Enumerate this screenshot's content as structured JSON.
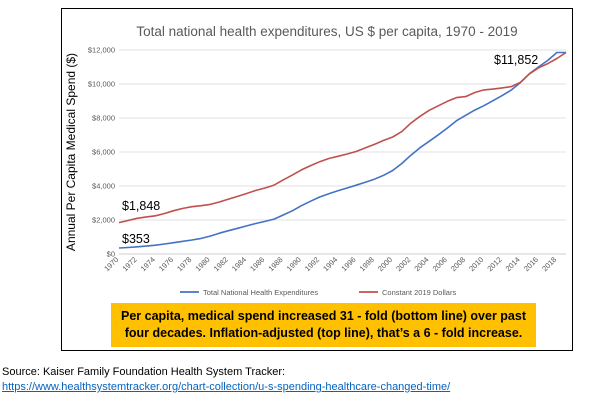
{
  "chart_data": {
    "type": "line",
    "title": "Total national health expenditures, US $ per capita, 1970 - 2019",
    "ylabel": "Annual Per Capita Medical Spend ($)",
    "xlabel": "",
    "ylim": [
      0,
      12000
    ],
    "yticks": [
      "$0",
      "$2,000",
      "$4,000",
      "$6,000",
      "$8,000",
      "$10,000",
      "$12,000"
    ],
    "ytick_values": [
      0,
      2000,
      4000,
      6000,
      8000,
      10000,
      12000
    ],
    "xlim": [
      1970,
      2019
    ],
    "xticks": [
      1970,
      1972,
      1974,
      1976,
      1978,
      1980,
      1982,
      1984,
      1986,
      1988,
      1990,
      1992,
      1994,
      1996,
      1998,
      2000,
      2002,
      2004,
      2006,
      2008,
      2010,
      2012,
      2014,
      2016,
      2018
    ],
    "grid": true,
    "legend_position": "bottom",
    "x": [
      1970,
      1971,
      1972,
      1973,
      1974,
      1975,
      1976,
      1977,
      1978,
      1979,
      1980,
      1981,
      1982,
      1983,
      1984,
      1985,
      1986,
      1987,
      1988,
      1989,
      1990,
      1991,
      1992,
      1993,
      1994,
      1995,
      1996,
      1997,
      1998,
      1999,
      2000,
      2001,
      2002,
      2003,
      2004,
      2005,
      2006,
      2007,
      2008,
      2009,
      2010,
      2011,
      2012,
      2013,
      2014,
      2015,
      2016,
      2017,
      2018,
      2019
    ],
    "series": [
      {
        "name": "Total National Health Expenditures",
        "color": "#4472c4",
        "values": [
          353,
          384,
          424,
          464,
          516,
          590,
          667,
          746,
          823,
          915,
          1055,
          1225,
          1372,
          1513,
          1653,
          1797,
          1917,
          2053,
          2297,
          2543,
          2843,
          3106,
          3354,
          3549,
          3715,
          3880,
          4049,
          4222,
          4400,
          4632,
          4914,
          5326,
          5811,
          6255,
          6631,
          7013,
          7409,
          7841,
          8161,
          8463,
          8723,
          9018,
          9320,
          9649,
          10081,
          10603,
          11004,
          11390,
          11853,
          11852
        ]
      },
      {
        "name": "Constant 2019 Dollars",
        "color": "#c0504d",
        "values": [
          1848,
          1970,
          2100,
          2180,
          2250,
          2380,
          2550,
          2680,
          2780,
          2840,
          2920,
          3060,
          3230,
          3390,
          3560,
          3740,
          3880,
          4050,
          4360,
          4640,
          4950,
          5200,
          5430,
          5620,
          5750,
          5880,
          6030,
          6240,
          6450,
          6680,
          6880,
          7200,
          7700,
          8100,
          8450,
          8720,
          8980,
          9200,
          9260,
          9500,
          9650,
          9700,
          9770,
          9850,
          10100,
          10600,
          10950,
          11200,
          11500,
          11852
        ]
      }
    ],
    "annotations": {
      "start_total": "$353",
      "start_constant": "$1,848",
      "end_value": "$11,852"
    }
  },
  "callout": {
    "line1": "Per capita, medical spend increased 31 - fold (bottom line) over past",
    "line2": "four decades. Inflation-adjusted (top line), that’s a 6 - fold increase."
  },
  "source": {
    "label": "Source: Kaiser Family Foundation Health System Tracker:",
    "url_text": "https://www.healthsystemtracker.org/chart-collection/u-s-spending-healthcare-changed-time/"
  }
}
